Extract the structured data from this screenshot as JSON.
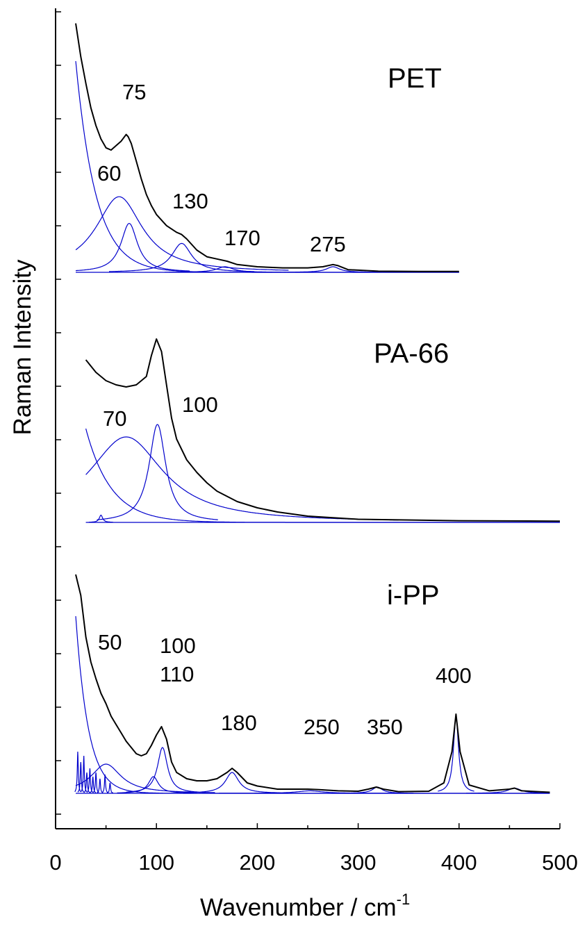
{
  "chart_data": {
    "type": "line",
    "title": "",
    "xlabel": "Wavenumber / cm",
    "xlabel_sup": "-1",
    "ylabel": "Raman Intensity",
    "xlim": [
      0,
      500
    ],
    "xticks": [
      0,
      100,
      200,
      300,
      400,
      500
    ],
    "xtick_labels": [
      "0",
      "100",
      "200",
      "300",
      "400",
      "500"
    ],
    "y_tick_labels_shown": false,
    "grid": false,
    "colors": {
      "measured": "#000000",
      "fit": "#0000cc"
    },
    "panels": [
      {
        "name": "PET",
        "x_range": [
          20,
          400
        ],
        "spectrum": [
          [
            20,
            1.12
          ],
          [
            25,
            0.97
          ],
          [
            30,
            0.85
          ],
          [
            35,
            0.74
          ],
          [
            40,
            0.66
          ],
          [
            45,
            0.6
          ],
          [
            50,
            0.56
          ],
          [
            55,
            0.55
          ],
          [
            60,
            0.57
          ],
          [
            65,
            0.59
          ],
          [
            70,
            0.62
          ],
          [
            72,
            0.61
          ],
          [
            75,
            0.58
          ],
          [
            80,
            0.5
          ],
          [
            85,
            0.42
          ],
          [
            90,
            0.35
          ],
          [
            95,
            0.3
          ],
          [
            100,
            0.26
          ],
          [
            110,
            0.21
          ],
          [
            120,
            0.18
          ],
          [
            125,
            0.17
          ],
          [
            130,
            0.15
          ],
          [
            140,
            0.1
          ],
          [
            150,
            0.07
          ],
          [
            160,
            0.06
          ],
          [
            170,
            0.05
          ],
          [
            180,
            0.035
          ],
          [
            200,
            0.025
          ],
          [
            225,
            0.02
          ],
          [
            250,
            0.02
          ],
          [
            265,
            0.025
          ],
          [
            275,
            0.035
          ],
          [
            280,
            0.03
          ],
          [
            290,
            0.012
          ],
          [
            320,
            0.005
          ],
          [
            360,
            0.004
          ],
          [
            400,
            0.004
          ]
        ],
        "background": {
          "a0": 0.95,
          "x0": 20,
          "decay": 0.05
        },
        "components": [
          {
            "center": 63,
            "height": 0.34,
            "width": 28
          },
          {
            "center": 73,
            "height": 0.22,
            "width": 10
          },
          {
            "center": 125,
            "height": 0.13,
            "width": 12
          },
          {
            "center": 168,
            "height": 0.025,
            "width": 10
          },
          {
            "center": 275,
            "height": 0.025,
            "width": 8
          }
        ],
        "peak_labels": [
          "75",
          "60",
          "130",
          "170",
          "275"
        ]
      },
      {
        "name": "PA-66",
        "x_range": [
          30,
          500
        ],
        "spectrum": [
          [
            30,
            0.78
          ],
          [
            40,
            0.72
          ],
          [
            50,
            0.68
          ],
          [
            60,
            0.66
          ],
          [
            70,
            0.65
          ],
          [
            80,
            0.66
          ],
          [
            90,
            0.7
          ],
          [
            95,
            0.8
          ],
          [
            100,
            0.88
          ],
          [
            105,
            0.82
          ],
          [
            110,
            0.66
          ],
          [
            115,
            0.5
          ],
          [
            120,
            0.4
          ],
          [
            130,
            0.3
          ],
          [
            140,
            0.24
          ],
          [
            150,
            0.19
          ],
          [
            160,
            0.15
          ],
          [
            180,
            0.1
          ],
          [
            200,
            0.07
          ],
          [
            220,
            0.05
          ],
          [
            250,
            0.03
          ],
          [
            300,
            0.015
          ],
          [
            400,
            0.008
          ],
          [
            500,
            0.006
          ]
        ],
        "background": {
          "a0": 0.45,
          "x0": 30,
          "decay": 0.04
        },
        "components": [
          {
            "center": 70,
            "height": 0.41,
            "width": 45
          },
          {
            "center": 101,
            "height": 0.47,
            "width": 10
          },
          {
            "center": 45,
            "height": 0.035,
            "width": 2
          }
        ],
        "peak_labels": [
          "70",
          "100"
        ]
      },
      {
        "name": "i-PP",
        "x_range": [
          20,
          490
        ],
        "spectrum": [
          [
            20,
            1.05
          ],
          [
            25,
            0.95
          ],
          [
            30,
            0.75
          ],
          [
            35,
            0.63
          ],
          [
            40,
            0.55
          ],
          [
            45,
            0.48
          ],
          [
            50,
            0.43
          ],
          [
            55,
            0.37
          ],
          [
            60,
            0.33
          ],
          [
            65,
            0.29
          ],
          [
            70,
            0.25
          ],
          [
            75,
            0.22
          ],
          [
            80,
            0.19
          ],
          [
            85,
            0.18
          ],
          [
            90,
            0.19
          ],
          [
            95,
            0.23
          ],
          [
            100,
            0.28
          ],
          [
            105,
            0.32
          ],
          [
            110,
            0.26
          ],
          [
            115,
            0.15
          ],
          [
            120,
            0.1
          ],
          [
            130,
            0.07
          ],
          [
            140,
            0.06
          ],
          [
            150,
            0.06
          ],
          [
            160,
            0.07
          ],
          [
            170,
            0.1
          ],
          [
            175,
            0.12
          ],
          [
            180,
            0.1
          ],
          [
            190,
            0.05
          ],
          [
            200,
            0.035
          ],
          [
            220,
            0.02
          ],
          [
            240,
            0.02
          ],
          [
            250,
            0.02
          ],
          [
            260,
            0.018
          ],
          [
            280,
            0.012
          ],
          [
            300,
            0.01
          ],
          [
            310,
            0.02
          ],
          [
            318,
            0.03
          ],
          [
            325,
            0.02
          ],
          [
            340,
            0.008
          ],
          [
            370,
            0.01
          ],
          [
            385,
            0.05
          ],
          [
            393,
            0.2
          ],
          [
            397,
            0.38
          ],
          [
            401,
            0.2
          ],
          [
            410,
            0.04
          ],
          [
            430,
            0.012
          ],
          [
            450,
            0.02
          ],
          [
            455,
            0.025
          ],
          [
            462,
            0.012
          ],
          [
            490,
            0.005
          ]
        ],
        "background": {
          "a0": 0.85,
          "x0": 20,
          "decay": 0.08
        },
        "components": [
          {
            "center": 50,
            "height": 0.14,
            "width": 18
          },
          {
            "center": 97,
            "height": 0.08,
            "width": 6
          },
          {
            "center": 106,
            "height": 0.22,
            "width": 6
          },
          {
            "center": 175,
            "height": 0.1,
            "width": 8
          },
          {
            "center": 252,
            "height": 0.012,
            "width": 15
          },
          {
            "center": 319,
            "height": 0.03,
            "width": 6
          },
          {
            "center": 397,
            "height": 0.37,
            "width": 3
          },
          {
            "center": 455,
            "height": 0.025,
            "width": 8
          }
        ],
        "sharp_lines": [
          {
            "center": 22,
            "height": 0.2
          },
          {
            "center": 25,
            "height": 0.15
          },
          {
            "center": 28,
            "height": 0.18
          },
          {
            "center": 31,
            "height": 0.1
          },
          {
            "center": 34,
            "height": 0.12
          },
          {
            "center": 37,
            "height": 0.08
          },
          {
            "center": 40,
            "height": 0.1
          },
          {
            "center": 44,
            "height": 0.07
          },
          {
            "center": 49,
            "height": 0.09
          },
          {
            "center": 54,
            "height": 0.05
          }
        ],
        "peak_labels": [
          "50",
          "100",
          "110",
          "180",
          "250",
          "350",
          "400"
        ]
      }
    ]
  }
}
